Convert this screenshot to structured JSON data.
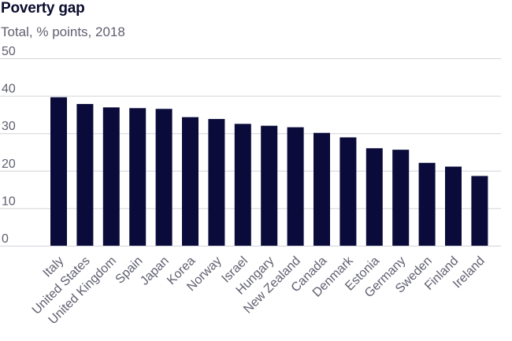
{
  "title": "Poverty gap",
  "subtitle": "Total, % points, 2018",
  "colors": {
    "bar": "#0b0b3b",
    "grid": "#d3d4da",
    "axis_text": "#5f6070",
    "tick_text": "#5f6070"
  },
  "chart_data": {
    "type": "bar",
    "title": "Poverty gap",
    "subtitle": "Total, % points, 2018",
    "xlabel": "",
    "ylabel": "",
    "ylim": [
      0,
      50
    ],
    "yticks": [
      0,
      10,
      20,
      30,
      40,
      50
    ],
    "grid": true,
    "legend": "none",
    "categories": [
      "Italy",
      "United States",
      "United Kingdom",
      "Spain",
      "Japan",
      "Korea",
      "Norway",
      "Israel",
      "Hungary",
      "New Zealand",
      "Canada",
      "Denmark",
      "Estonia",
      "Germany",
      "Sweden",
      "Finland",
      "Ireland"
    ],
    "values": [
      39.6,
      37.8,
      36.9,
      36.7,
      36.5,
      34.3,
      33.8,
      32.5,
      32.0,
      31.6,
      30.1,
      28.9,
      26.0,
      25.6,
      22.1,
      21.1,
      18.6
    ]
  }
}
